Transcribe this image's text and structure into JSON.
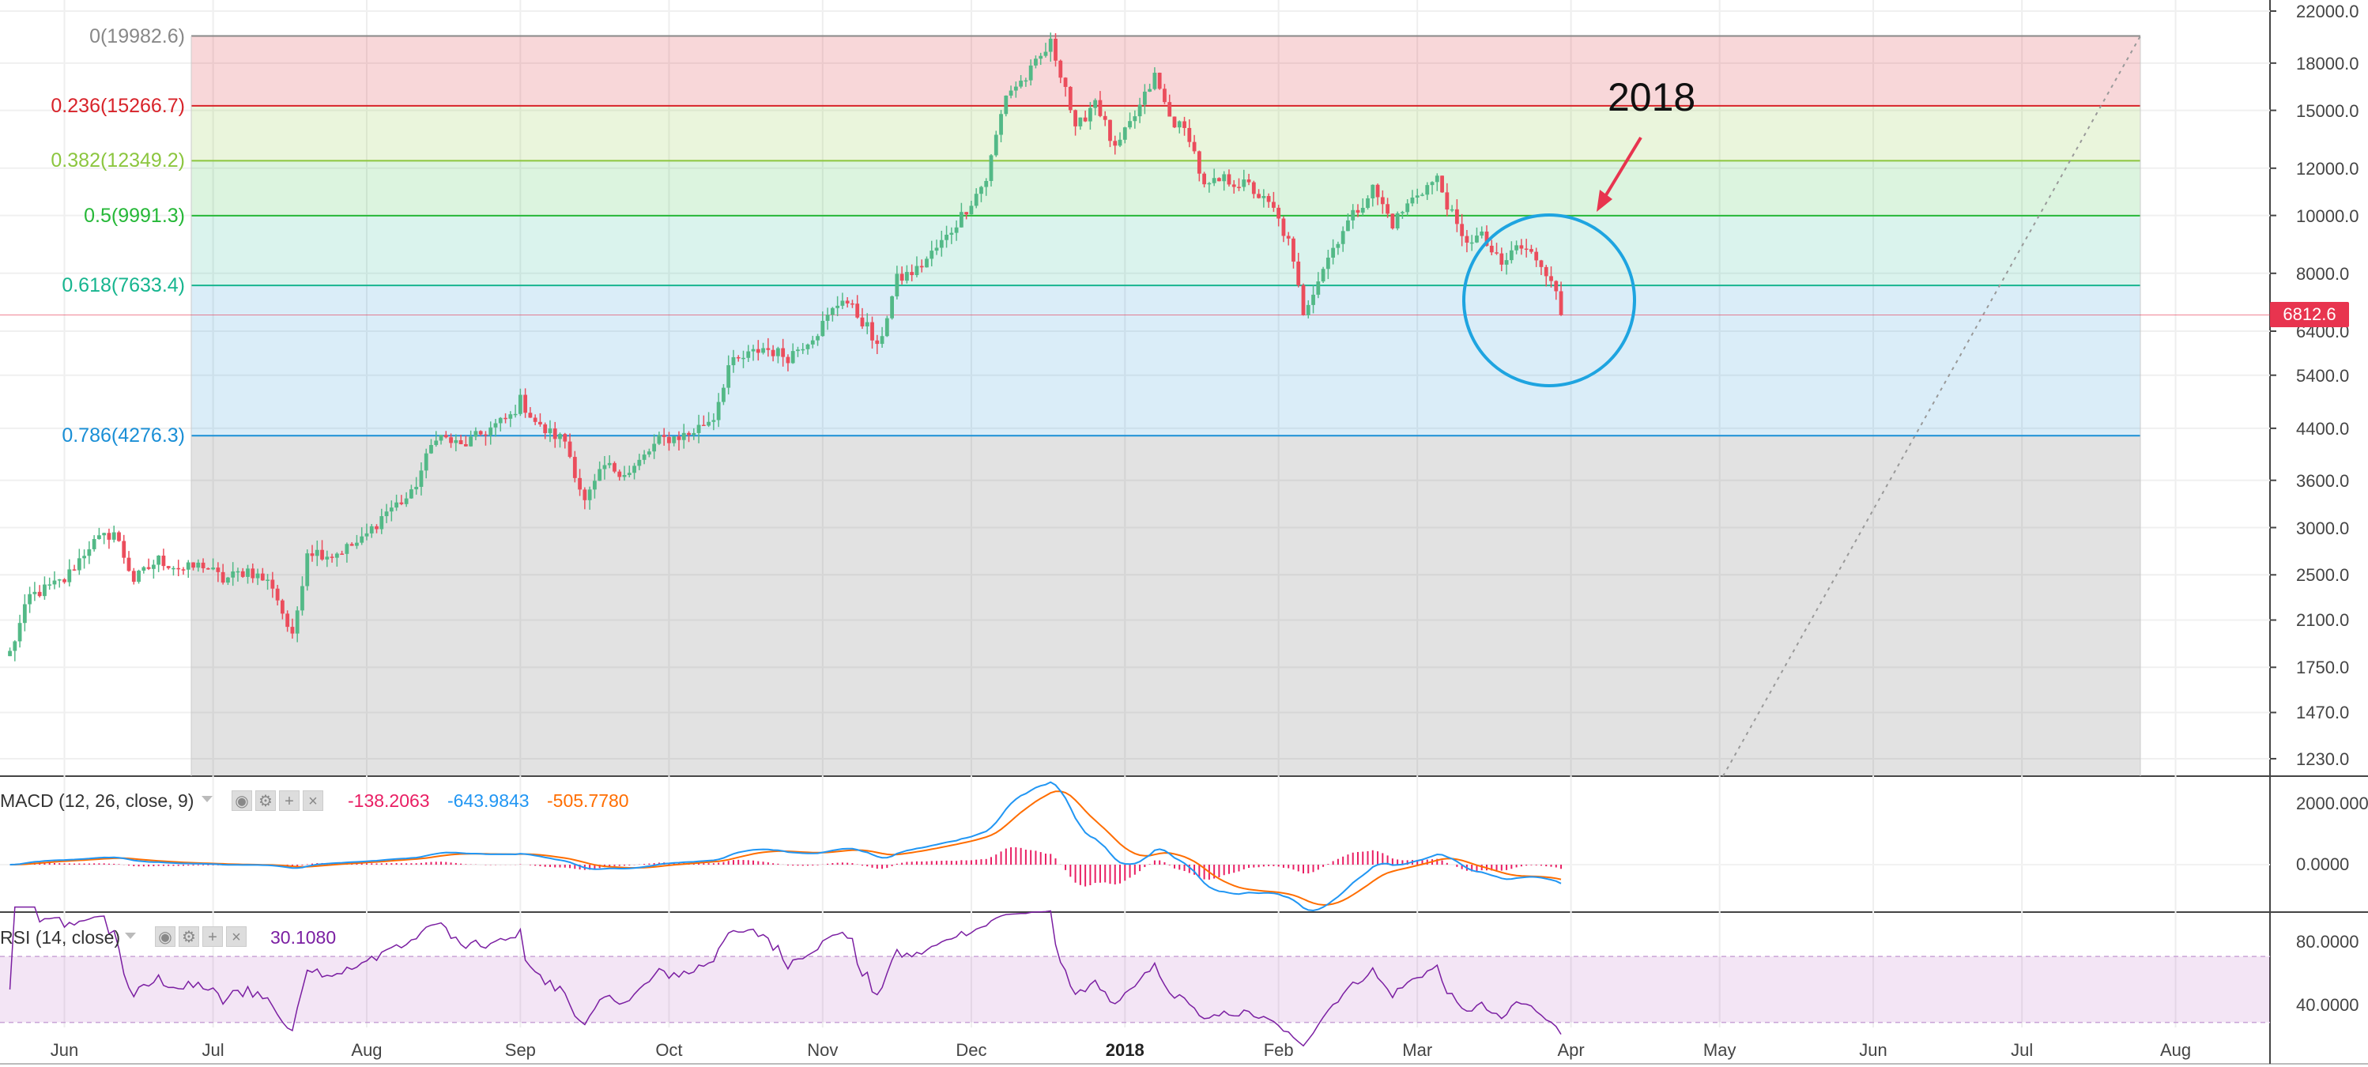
{
  "chart_data": [
    {
      "type": "candlestick",
      "title": "",
      "y_scale": "log",
      "ylim": [
        1150,
        22000
      ],
      "y_ticks": [
        "22000.0",
        "18000.0",
        "15000.0",
        "12000.0",
        "10000.0",
        "8000.0",
        "6400.0",
        "5400.0",
        "4400.0",
        "3600.0",
        "3000.0",
        "2500.0",
        "2100.0",
        "1750.0",
        "1470.0",
        "1230.0"
      ],
      "x_ticks": [
        "Jun",
        "Jul",
        "Aug",
        "Sep",
        "Oct",
        "Nov",
        "Dec",
        "2018",
        "Feb",
        "Mar",
        "Apr",
        "May",
        "Jun",
        "Jul",
        "Aug"
      ],
      "last_price": "6812.6",
      "colors": {
        "up": "#53b987",
        "down": "#eb4d5c"
      },
      "fib_levels": [
        {
          "label": "0(19982.6)",
          "value": 19982.6,
          "color": "#888888"
        },
        {
          "label": "0.236(15266.7)",
          "value": 15266.7,
          "color": "#d8232a"
        },
        {
          "label": "0.382(12349.2)",
          "value": 12349.2,
          "color": "#8cc63f"
        },
        {
          "label": "0.5(9991.3)",
          "value": 9991.3,
          "color": "#26b838"
        },
        {
          "label": "0.618(7633.4)",
          "value": 7633.4,
          "color": "#17b58f"
        },
        {
          "label": "0.786(4276.3)",
          "value": 4276.3,
          "color": "#1a8fd6"
        }
      ],
      "series": [
        {
          "x": "2017-05-21",
          "y": 1850
        },
        {
          "x": "2017-05-25",
          "y": 2300
        },
        {
          "x": "2017-06-01",
          "y": 2450
        },
        {
          "x": "2017-06-06",
          "y": 2800
        },
        {
          "x": "2017-06-11",
          "y": 2950
        },
        {
          "x": "2017-06-15",
          "y": 2450
        },
        {
          "x": "2017-06-20",
          "y": 2650
        },
        {
          "x": "2017-06-25",
          "y": 2550
        },
        {
          "x": "2017-06-29",
          "y": 2600
        },
        {
          "x": "2017-07-03",
          "y": 2450
        },
        {
          "x": "2017-07-08",
          "y": 2550
        },
        {
          "x": "2017-07-13",
          "y": 2400
        },
        {
          "x": "2017-07-17",
          "y": 1950
        },
        {
          "x": "2017-07-20",
          "y": 2750
        },
        {
          "x": "2017-07-25",
          "y": 2700
        },
        {
          "x": "2017-07-31",
          "y": 2850
        },
        {
          "x": "2017-08-05",
          "y": 3200
        },
        {
          "x": "2017-08-10",
          "y": 3400
        },
        {
          "x": "2017-08-15",
          "y": 4300
        },
        {
          "x": "2017-08-20",
          "y": 4100
        },
        {
          "x": "2017-08-25",
          "y": 4350
        },
        {
          "x": "2017-08-30",
          "y": 4600
        },
        {
          "x": "2017-09-01",
          "y": 4900
        },
        {
          "x": "2017-09-05",
          "y": 4400
        },
        {
          "x": "2017-09-10",
          "y": 4200
        },
        {
          "x": "2017-09-14",
          "y": 3300
        },
        {
          "x": "2017-09-18",
          "y": 3800
        },
        {
          "x": "2017-09-23",
          "y": 3700
        },
        {
          "x": "2017-09-29",
          "y": 4200
        },
        {
          "x": "2017-10-05",
          "y": 4300
        },
        {
          "x": "2017-10-10",
          "y": 4600
        },
        {
          "x": "2017-10-13",
          "y": 5600
        },
        {
          "x": "2017-10-20",
          "y": 6000
        },
        {
          "x": "2017-10-25",
          "y": 5800
        },
        {
          "x": "2017-10-31",
          "y": 6400
        },
        {
          "x": "2017-11-05",
          "y": 7300
        },
        {
          "x": "2017-11-10",
          "y": 6500
        },
        {
          "x": "2017-11-12",
          "y": 5950
        },
        {
          "x": "2017-11-16",
          "y": 7800
        },
        {
          "x": "2017-11-20",
          "y": 8100
        },
        {
          "x": "2017-11-26",
          "y": 9200
        },
        {
          "x": "2017-11-29",
          "y": 10000
        },
        {
          "x": "2017-12-04",
          "y": 11500
        },
        {
          "x": "2017-12-08",
          "y": 16000
        },
        {
          "x": "2017-12-12",
          "y": 17000
        },
        {
          "x": "2017-12-17",
          "y": 19400
        },
        {
          "x": "2017-12-20",
          "y": 16500
        },
        {
          "x": "2017-12-22",
          "y": 13800
        },
        {
          "x": "2017-12-26",
          "y": 15700
        },
        {
          "x": "2017-12-30",
          "y": 12800
        },
        {
          "x": "2018-01-04",
          "y": 15200
        },
        {
          "x": "2018-01-07",
          "y": 17100
        },
        {
          "x": "2018-01-10",
          "y": 14600
        },
        {
          "x": "2018-01-14",
          "y": 13600
        },
        {
          "x": "2018-01-17",
          "y": 11100
        },
        {
          "x": "2018-01-21",
          "y": 11500
        },
        {
          "x": "2018-01-26",
          "y": 11200
        },
        {
          "x": "2018-01-31",
          "y": 10200
        },
        {
          "x": "2018-02-03",
          "y": 9000
        },
        {
          "x": "2018-02-06",
          "y": 6900
        },
        {
          "x": "2018-02-10",
          "y": 8200
        },
        {
          "x": "2018-02-14",
          "y": 9500
        },
        {
          "x": "2018-02-20",
          "y": 11100
        },
        {
          "x": "2018-02-24",
          "y": 9700
        },
        {
          "x": "2018-03-01",
          "y": 10900
        },
        {
          "x": "2018-03-05",
          "y": 11500
        },
        {
          "x": "2018-03-10",
          "y": 9100
        },
        {
          "x": "2018-03-14",
          "y": 9200
        },
        {
          "x": "2018-03-18",
          "y": 8200
        },
        {
          "x": "2018-03-21",
          "y": 8900
        },
        {
          "x": "2018-03-25",
          "y": 8500
        },
        {
          "x": "2018-03-28",
          "y": 7900
        },
        {
          "x": "2018-03-30",
          "y": 6812.6
        }
      ]
    },
    {
      "type": "line",
      "name": "MACD",
      "ylim": [
        -900,
        2400
      ],
      "y_ticks": [
        "2000.0000",
        "0.0000"
      ],
      "series": [
        {
          "name": "MACD",
          "color": "#2196f3",
          "values": [
            [
              -2017.4,
              40
            ],
            [
              -2017.6,
              30
            ],
            [
              -2017.7,
              20
            ],
            [
              -2017.8,
              60
            ],
            [
              -2017.9,
              110
            ],
            [
              -2017.95,
              240
            ],
            [
              -2017.97,
              560
            ],
            [
              -2017.98,
              1880
            ],
            [
              -2018.0,
              900
            ],
            [
              -2018.03,
              420
            ],
            [
              -2018.06,
              -250
            ],
            [
              -2018.09,
              -670
            ],
            [
              -2018.12,
              -500
            ],
            [
              -2018.16,
              40
            ],
            [
              -2018.19,
              160
            ],
            [
              -2018.22,
              -270
            ],
            [
              -2018.25,
              -440
            ]
          ]
        }
      ]
    },
    {
      "type": "line",
      "name": "RSI",
      "ylim": [
        25,
        95
      ],
      "y_ticks": [
        "80.0000",
        "40.0000"
      ],
      "bands": [
        30,
        70
      ]
    }
  ],
  "indicators": {
    "macd": {
      "title": "MACD (12, 26, close, 9)",
      "hist_value": "-138.2063",
      "macd_value": "-643.9843",
      "signal_value": "-505.7780",
      "hist_color": "#e91e63",
      "macd_color": "#2196f3",
      "signal_color": "#ff6d00"
    },
    "rsi": {
      "title": "RSI (14, close)",
      "value": "30.1080",
      "color": "#7b1fa2"
    }
  },
  "annotation": {
    "text": "2018"
  },
  "colors": {
    "accent_red": "#e8344f",
    "circle": "#1ea4e0"
  }
}
